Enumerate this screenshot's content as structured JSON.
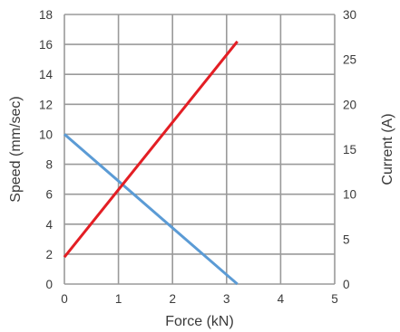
{
  "chart_data": {
    "type": "line",
    "title": "",
    "xlabel": "Force (kN)",
    "ylabel_left": "Speed (mm/sec)",
    "ylabel_right": "Current (A)",
    "xlim": [
      0,
      5
    ],
    "ylim_left": [
      0,
      18
    ],
    "ylim_right": [
      0,
      30
    ],
    "x_ticks": [
      "0",
      "1",
      "2",
      "3",
      "4",
      "5"
    ],
    "y_left_ticks": [
      "0",
      "2",
      "4",
      "6",
      "8",
      "10",
      "12",
      "14",
      "16",
      "18"
    ],
    "y_right_ticks": [
      "0",
      "5",
      "10",
      "15",
      "20",
      "25",
      "30"
    ],
    "grid": true,
    "legend": "none",
    "series": [
      {
        "axis": "left",
        "color": "#5b9bd5",
        "x": [
          0,
          3.2
        ],
        "y": [
          10,
          0
        ]
      },
      {
        "axis": "right",
        "color": "#e31e24",
        "x": [
          0,
          3.2
        ],
        "y": [
          3,
          27
        ]
      }
    ]
  }
}
